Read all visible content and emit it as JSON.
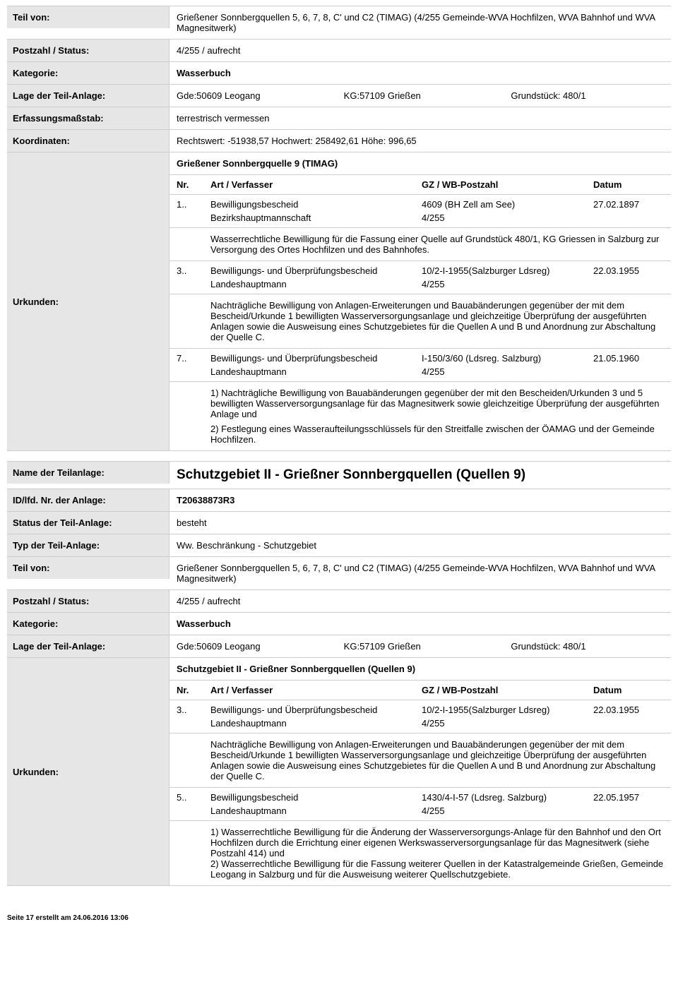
{
  "labels": {
    "teil_von": "Teil von:",
    "postzahl_status": "Postzahl / Status:",
    "kategorie": "Kategorie:",
    "lage": "Lage der Teil-Anlage:",
    "erfassung": "Erfassungsmaßstab:",
    "koordinaten": "Koordinaten:",
    "urkunden": "Urkunden:",
    "name_teilanlage": "Name der Teilanlage:",
    "id_lfd": "ID/lfd. Nr. der Anlage:",
    "status_teil": "Status der Teil-Anlage:",
    "typ_teil": "Typ der Teil-Anlage:"
  },
  "urk_headers": {
    "nr": "Nr.",
    "art": "Art / Verfasser",
    "gz": "GZ / WB-Postzahl",
    "datum": "Datum"
  },
  "s1": {
    "teil_von": "Grießener Sonnbergquellen 5, 6, 7, 8, C' und C2 (TIMAG) (4/255 Gemeinde-WVA Hochfilzen, WVA Bahnhof und WVA Magnesitwerk)",
    "postzahl_status": "4/255 / aufrecht",
    "kategorie": "Wasserbuch",
    "lage_gde": "Gde:50609 Leogang",
    "lage_kg": "KG:57109 Grießen",
    "lage_grund": "Grundstück: 480/1",
    "erfassung": "terrestrisch vermessen",
    "koordinaten": "Rechtswert: -51938,57 Hochwert: 258492,61 Höhe: 996,65",
    "urk_title": "Grießener Sonnbergquelle 9 (TIMAG)",
    "entries": [
      {
        "nr": "1..",
        "art1": "Bewilligungsbescheid",
        "art2": "Bezirkshauptmannschaft",
        "gz1": "4609  (BH Zell am See)",
        "gz2": "4/255",
        "datum": "27.02.1897",
        "desc": [
          "Wasserrechtliche Bewilligung für die Fassung einer Quelle auf Grundstück 480/1, KG Griessen in Salzburg zur Versorgung des Ortes Hochfilzen und des Bahnhofes."
        ]
      },
      {
        "nr": "3..",
        "art1": "Bewilligungs- und Überprüfungsbescheid",
        "art2": "Landeshauptmann",
        "gz1": "10/2-I-1955(Salzburger Ldsreg)",
        "gz2": "4/255",
        "datum": "22.03.1955",
        "desc": [
          "Nachträgliche Bewilligung von Anlagen-Erweiterungen und Bauabänderungen gegenüber der mit dem Bescheid/Urkunde 1 bewilligten Wasserversorgungsanlage und gleichzeitige Überprüfung der ausgeführten Anlagen sowie die Ausweisung eines Schutzgebietes für die Quellen A und B und Anordnung zur Abschaltung der Quelle C."
        ]
      },
      {
        "nr": "7..",
        "art1": "Bewilligungs- und Überprüfungsbescheid",
        "art2": "Landeshauptmann",
        "gz1": "I-150/3/60 (Ldsreg. Salzburg)",
        "gz2": "4/255",
        "datum": "21.05.1960",
        "desc": [
          "1) Nachträgliche Bewilligung von Bauabänderungen gegenüber der mit den Bescheiden/Urkunden 3 und 5 bewilligten Wasserversorgungsanlage für das Magnesitwerk sowie gleichzeitige Überprüfung der ausgeführten Anlage und",
          "2) Festlegung eines Wasseraufteilungsschlüssels für den Streitfalle zwischen der ÖAMAG und der Gemeinde Hochfilzen."
        ]
      }
    ]
  },
  "s2": {
    "name_teilanlage": "Schutzgebiet II - Grießner Sonnbergquellen (Quellen 9)",
    "id_lfd": "T20638873R3",
    "status_teil": "besteht",
    "typ_teil": "Ww. Beschränkung - Schutzgebiet",
    "teil_von": "Grießener Sonnbergquellen 5, 6, 7, 8, C' und C2 (TIMAG) (4/255 Gemeinde-WVA Hochfilzen, WVA Bahnhof und WVA Magnesitwerk)",
    "postzahl_status": "4/255 / aufrecht",
    "kategorie": "Wasserbuch",
    "lage_gde": "Gde:50609 Leogang",
    "lage_kg": "KG:57109 Grießen",
    "lage_grund": "Grundstück: 480/1",
    "urk_title": "Schutzgebiet II - Grießner Sonnbergquellen (Quellen  9)",
    "entries": [
      {
        "nr": "3..",
        "art1": "Bewilligungs- und Überprüfungsbescheid",
        "art2": "Landeshauptmann",
        "gz1": "10/2-I-1955(Salzburger Ldsreg)",
        "gz2": "4/255",
        "datum": "22.03.1955",
        "desc": [
          "Nachträgliche Bewilligung von Anlagen-Erweiterungen und Bauabänderungen gegenüber der mit dem Bescheid/Urkunde 1 bewilligten Wasserversorgungsanlage und gleichzeitige Überprüfung der ausgeführten Anlagen sowie die Ausweisung eines Schutzgebietes für die Quellen A und B und Anordnung zur Abschaltung der Quelle C."
        ]
      },
      {
        "nr": "5..",
        "art1": "Bewilligungsbescheid",
        "art2": "Landeshauptmann",
        "gz1": "1430/4-I-57 (Ldsreg. Salzburg)",
        "gz2": "4/255",
        "datum": "22.05.1957",
        "desc": [
          "1) Wasserrechtliche Bewilligung für die Änderung der Wasserversorgungs-Anlage für den Bahnhof und den Ort Hochfilzen durch die Errichtung einer eigenen Werkswasserversorgungsanlage für das Magnesitwerk (siehe Postzahl 414) und",
          "2) Wasserrechtliche Bewilligung für die Fassung weiterer Quellen in der Katastralgemeinde Grießen, Gemeinde Leogang in Salzburg und für die Ausweisung weiterer Quellschutzgebiete."
        ],
        "desc_tight": true
      }
    ]
  },
  "footer": "Seite 17 erstellt am 24.06.2016 13:06"
}
